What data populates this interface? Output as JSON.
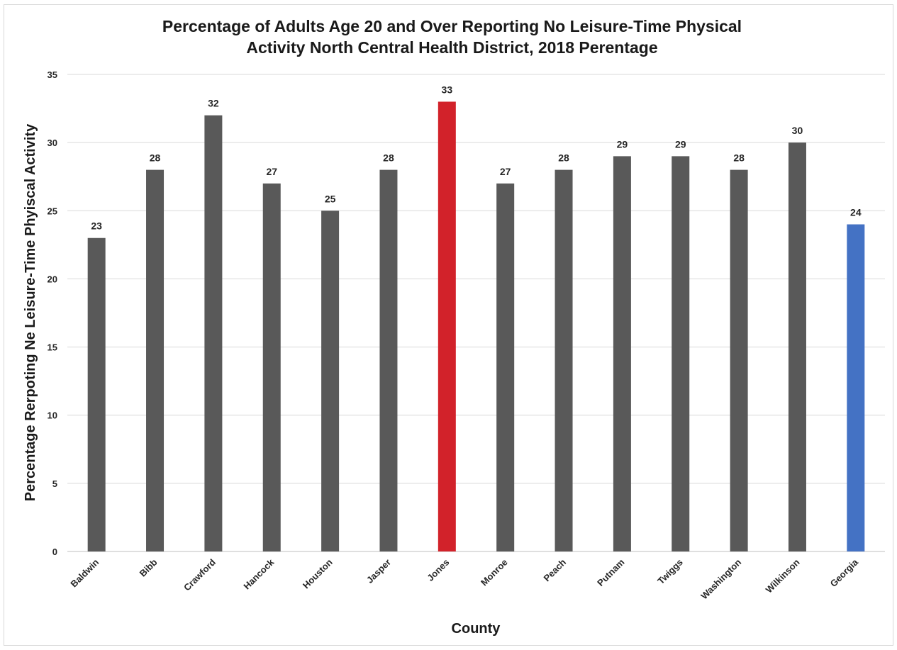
{
  "chart_data": {
    "type": "bar",
    "title_line1": "Percentage of Adults Age 20 and Over Reporting No Leisure-Time Physical",
    "title_line2": "Activity North Central Health District, 2018 Perentage",
    "xlabel": "County",
    "ylabel": "Percentage Rerpoting Ne Leisure-Time Phyiscal Activity",
    "categories": [
      "Baldwin",
      "Bibb",
      "Crawford",
      "Hancock",
      "Houston",
      "Jasper",
      "Jones",
      "Monroe",
      "Peach",
      "Putnam",
      "Twiggs",
      "Washington",
      "Wilkinson",
      "Georgia"
    ],
    "values": [
      23,
      28,
      32,
      27,
      25,
      28,
      33,
      27,
      28,
      29,
      29,
      28,
      30,
      24
    ],
    "bar_colors": [
      "#595959",
      "#595959",
      "#595959",
      "#595959",
      "#595959",
      "#595959",
      "#d2222a",
      "#595959",
      "#595959",
      "#595959",
      "#595959",
      "#595959",
      "#595959",
      "#4472c4"
    ],
    "ylim": [
      0,
      35
    ],
    "yticks": [
      0,
      5,
      10,
      15,
      20,
      25,
      30,
      35
    ],
    "grid": true,
    "legend": "none",
    "data_labels": true
  }
}
